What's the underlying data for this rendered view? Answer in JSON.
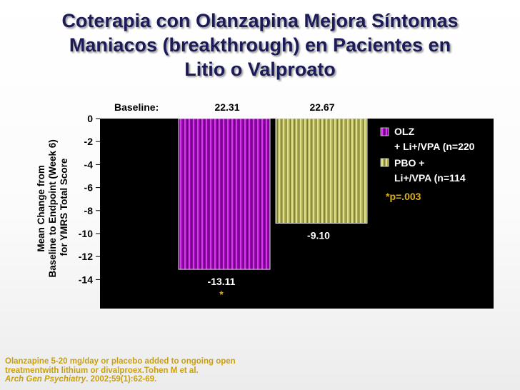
{
  "slide": {
    "title_lines": [
      "Coterapia con Olanzapina Mejora Síntomas",
      "Maniacos (breakthrough) en Pacientes en",
      "Litio o Valproato"
    ],
    "footnote_lines": [
      "Olanzapine 5-20 mg/day or placebo added to ongoing open",
      "treatmentwith lithium or divalproex.Tohen M et al."
    ],
    "citation": {
      "journal": "Arch Gen Psychiatry",
      "ref": ". 2002;59(1):62-69."
    }
  },
  "chart_data": {
    "type": "bar",
    "ylabel_lines": [
      "Mean Change from",
      "Baseline to Endpoint (Week 6)",
      "for YMRS Total Score"
    ],
    "ylim": [
      -14,
      0
    ],
    "yticks": [
      0,
      -2,
      -4,
      -6,
      -8,
      -10,
      -12,
      -14
    ],
    "grid": false,
    "baseline": {
      "label": "Baseline:",
      "values": [
        "22.31",
        "22.67"
      ]
    },
    "series": [
      {
        "legend_lines": [
          "OLZ",
          "+ Li+/VPA (n=220"
        ],
        "value": -13.11,
        "value_label": "-13.11",
        "significance": "*",
        "color": "#a400b8"
      },
      {
        "legend_lines": [
          "PBO +",
          "Li+/VPA (n=114"
        ],
        "value": -9.1,
        "value_label": "-9.10",
        "significance": "",
        "color": "#b4b454"
      }
    ],
    "annotation": "*p=.003",
    "colors": {
      "plot_background": "#000000",
      "axis_text": "#000000",
      "value_text": "#ffffff",
      "significance_text": "#e0b010"
    },
    "legend_position": "right"
  }
}
